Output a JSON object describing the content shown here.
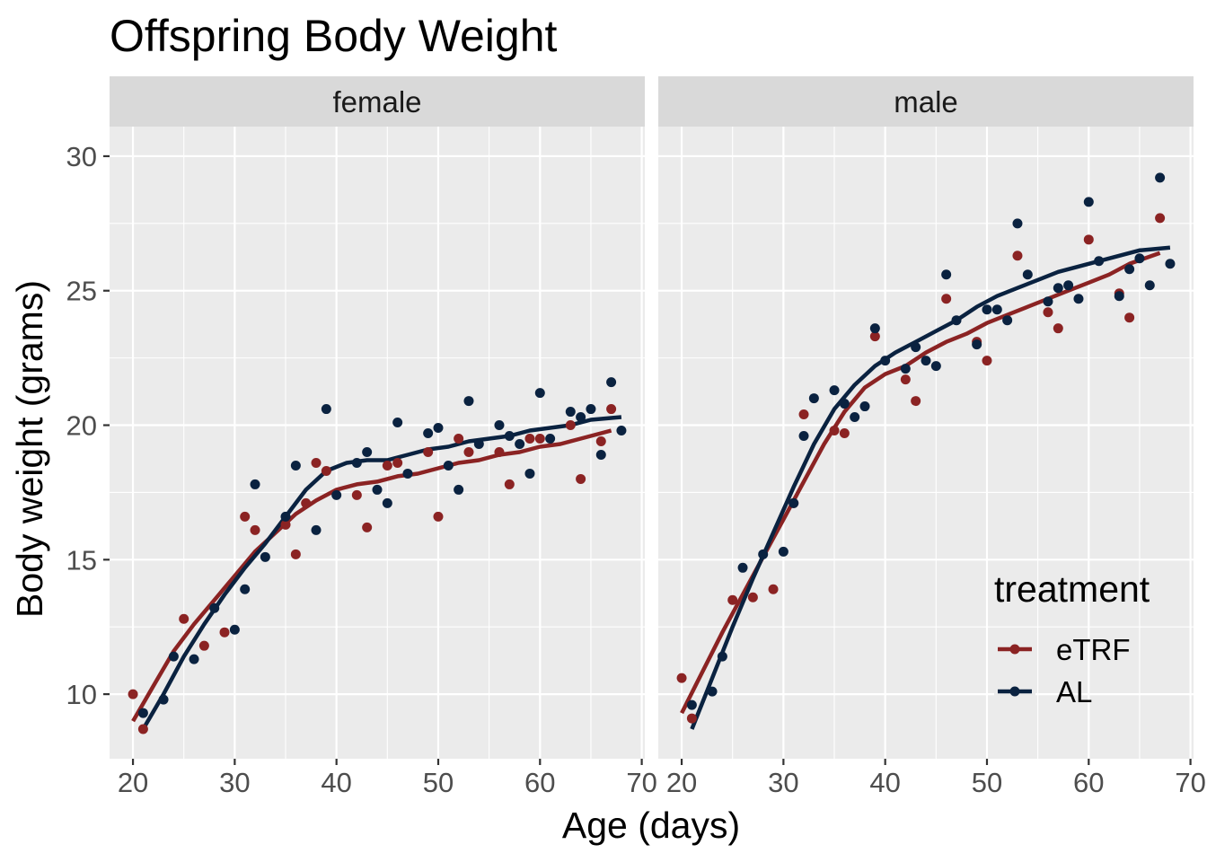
{
  "chart_data": {
    "type": "scatter",
    "title": "Offspring Body Weight",
    "xlabel": "Age (days)",
    "ylabel": "Body weight (grams)",
    "xlim": [
      17.7,
      70.3
    ],
    "ylim": [
      7.6,
      31.1
    ],
    "x_ticks": [
      "20",
      "30",
      "40",
      "50",
      "60",
      "70"
    ],
    "y_ticks": [
      "10",
      "15",
      "20",
      "25",
      "30"
    ],
    "grid": true,
    "legend": {
      "title": "treatment",
      "position": "bottom-right",
      "entries": [
        {
          "label": "eTRF",
          "color": "#8B2323"
        },
        {
          "label": "AL",
          "color": "#0A2240"
        }
      ]
    },
    "facets": [
      {
        "label": "female",
        "series": [
          {
            "name": "eTRF",
            "color": "#8B2323",
            "points": [
              [
                20,
                10.0
              ],
              [
                21,
                8.7
              ],
              [
                25,
                12.8
              ],
              [
                27,
                11.8
              ],
              [
                29,
                12.3
              ],
              [
                31,
                16.6
              ],
              [
                32,
                16.1
              ],
              [
                35,
                16.3
              ],
              [
                36,
                15.2
              ],
              [
                37,
                17.1
              ],
              [
                38,
                18.6
              ],
              [
                39,
                18.3
              ],
              [
                42,
                17.4
              ],
              [
                43,
                16.2
              ],
              [
                45,
                18.5
              ],
              [
                46,
                18.6
              ],
              [
                49,
                19.0
              ],
              [
                50,
                16.6
              ],
              [
                52,
                19.5
              ],
              [
                53,
                19.0
              ],
              [
                56,
                19.0
              ],
              [
                57,
                17.8
              ],
              [
                59,
                19.5
              ],
              [
                60,
                19.5
              ],
              [
                63,
                20.0
              ],
              [
                64,
                18.0
              ],
              [
                66,
                19.4
              ],
              [
                67,
                20.6
              ]
            ],
            "smooth": [
              [
                20,
                9.0
              ],
              [
                22,
                10.3
              ],
              [
                24,
                11.6
              ],
              [
                26,
                12.6
              ],
              [
                28,
                13.5
              ],
              [
                30,
                14.4
              ],
              [
                32,
                15.3
              ],
              [
                34,
                16.0
              ],
              [
                36,
                16.7
              ],
              [
                38,
                17.2
              ],
              [
                40,
                17.6
              ],
              [
                42,
                17.8
              ],
              [
                44,
                17.9
              ],
              [
                46,
                18.1
              ],
              [
                48,
                18.2
              ],
              [
                50,
                18.4
              ],
              [
                52,
                18.6
              ],
              [
                54,
                18.7
              ],
              [
                56,
                18.9
              ],
              [
                58,
                19.0
              ],
              [
                60,
                19.2
              ],
              [
                62,
                19.3
              ],
              [
                64,
                19.5
              ],
              [
                67,
                19.8
              ]
            ]
          },
          {
            "name": "AL",
            "color": "#0A2240",
            "points": [
              [
                21,
                9.3
              ],
              [
                23,
                9.8
              ],
              [
                24,
                11.4
              ],
              [
                26,
                11.3
              ],
              [
                28,
                13.2
              ],
              [
                30,
                12.4
              ],
              [
                31,
                13.9
              ],
              [
                32,
                17.8
              ],
              [
                33,
                15.1
              ],
              [
                35,
                16.6
              ],
              [
                36,
                18.5
              ],
              [
                38,
                16.1
              ],
              [
                39,
                20.6
              ],
              [
                40,
                17.4
              ],
              [
                42,
                18.6
              ],
              [
                43,
                19.0
              ],
              [
                44,
                17.6
              ],
              [
                45,
                17.1
              ],
              [
                46,
                20.1
              ],
              [
                47,
                18.2
              ],
              [
                49,
                19.7
              ],
              [
                50,
                19.9
              ],
              [
                51,
                18.5
              ],
              [
                52,
                17.6
              ],
              [
                53,
                20.9
              ],
              [
                54,
                19.3
              ],
              [
                56,
                20.0
              ],
              [
                57,
                19.6
              ],
              [
                58,
                19.3
              ],
              [
                59,
                18.2
              ],
              [
                60,
                21.2
              ],
              [
                61,
                19.5
              ],
              [
                63,
                20.5
              ],
              [
                64,
                20.3
              ],
              [
                65,
                20.6
              ],
              [
                66,
                18.9
              ],
              [
                67,
                21.6
              ],
              [
                68,
                19.8
              ]
            ],
            "smooth": [
              [
                21,
                8.7
              ],
              [
                23,
                10.0
              ],
              [
                25,
                11.4
              ],
              [
                27,
                12.6
              ],
              [
                29,
                13.7
              ],
              [
                31,
                14.7
              ],
              [
                33,
                15.6
              ],
              [
                35,
                16.6
              ],
              [
                37,
                17.6
              ],
              [
                39,
                18.3
              ],
              [
                41,
                18.6
              ],
              [
                43,
                18.7
              ],
              [
                45,
                18.7
              ],
              [
                47,
                18.9
              ],
              [
                49,
                19.1
              ],
              [
                51,
                19.2
              ],
              [
                53,
                19.4
              ],
              [
                55,
                19.5
              ],
              [
                57,
                19.6
              ],
              [
                59,
                19.8
              ],
              [
                61,
                19.9
              ],
              [
                63,
                20.0
              ],
              [
                65,
                20.2
              ],
              [
                68,
                20.3
              ]
            ]
          }
        ]
      },
      {
        "label": "male",
        "series": [
          {
            "name": "eTRF",
            "color": "#8B2323",
            "points": [
              [
                20,
                10.6
              ],
              [
                21,
                9.1
              ],
              [
                25,
                13.5
              ],
              [
                27,
                13.6
              ],
              [
                29,
                13.9
              ],
              [
                31,
                17.1
              ],
              [
                32,
                20.4
              ],
              [
                35,
                19.8
              ],
              [
                36,
                19.7
              ],
              [
                39,
                23.3
              ],
              [
                42,
                21.7
              ],
              [
                43,
                20.9
              ],
              [
                46,
                24.7
              ],
              [
                49,
                23.1
              ],
              [
                50,
                22.4
              ],
              [
                53,
                26.3
              ],
              [
                56,
                24.2
              ],
              [
                57,
                23.6
              ],
              [
                60,
                26.9
              ],
              [
                63,
                24.9
              ],
              [
                64,
                24.0
              ],
              [
                67,
                27.7
              ]
            ],
            "smooth": [
              [
                20,
                9.3
              ],
              [
                22,
                10.8
              ],
              [
                24,
                12.3
              ],
              [
                26,
                13.7
              ],
              [
                28,
                15.1
              ],
              [
                30,
                16.5
              ],
              [
                32,
                17.9
              ],
              [
                34,
                19.3
              ],
              [
                36,
                20.5
              ],
              [
                38,
                21.4
              ],
              [
                40,
                21.9
              ],
              [
                42,
                22.2
              ],
              [
                44,
                22.7
              ],
              [
                46,
                23.1
              ],
              [
                48,
                23.4
              ],
              [
                50,
                23.8
              ],
              [
                52,
                24.1
              ],
              [
                54,
                24.4
              ],
              [
                56,
                24.7
              ],
              [
                58,
                25.0
              ],
              [
                60,
                25.3
              ],
              [
                62,
                25.6
              ],
              [
                64,
                26.0
              ],
              [
                67,
                26.4
              ]
            ]
          },
          {
            "name": "AL",
            "color": "#0A2240",
            "points": [
              [
                21,
                9.6
              ],
              [
                23,
                10.1
              ],
              [
                24,
                11.4
              ],
              [
                26,
                14.7
              ],
              [
                28,
                15.2
              ],
              [
                30,
                15.3
              ],
              [
                31,
                17.1
              ],
              [
                32,
                19.6
              ],
              [
                33,
                21.0
              ],
              [
                35,
                21.3
              ],
              [
                36,
                20.8
              ],
              [
                37,
                20.3
              ],
              [
                38,
                20.7
              ],
              [
                39,
                23.6
              ],
              [
                40,
                22.4
              ],
              [
                42,
                22.1
              ],
              [
                43,
                22.9
              ],
              [
                44,
                22.4
              ],
              [
                45,
                22.2
              ],
              [
                46,
                25.6
              ],
              [
                47,
                23.9
              ],
              [
                49,
                23.0
              ],
              [
                50,
                24.3
              ],
              [
                51,
                24.3
              ],
              [
                52,
                23.9
              ],
              [
                53,
                27.5
              ],
              [
                54,
                25.6
              ],
              [
                56,
                24.6
              ],
              [
                57,
                25.1
              ],
              [
                58,
                25.2
              ],
              [
                59,
                24.7
              ],
              [
                60,
                28.3
              ],
              [
                61,
                26.1
              ],
              [
                63,
                24.8
              ],
              [
                64,
                25.8
              ],
              [
                65,
                26.2
              ],
              [
                66,
                25.2
              ],
              [
                67,
                29.2
              ],
              [
                68,
                26.0
              ]
            ],
            "smooth": [
              [
                21,
                8.7
              ],
              [
                23,
                10.6
              ],
              [
                25,
                12.5
              ],
              [
                27,
                14.3
              ],
              [
                29,
                16.0
              ],
              [
                31,
                17.7
              ],
              [
                33,
                19.3
              ],
              [
                35,
                20.6
              ],
              [
                37,
                21.5
              ],
              [
                39,
                22.2
              ],
              [
                41,
                22.7
              ],
              [
                43,
                23.1
              ],
              [
                45,
                23.5
              ],
              [
                47,
                23.9
              ],
              [
                49,
                24.4
              ],
              [
                51,
                24.8
              ],
              [
                53,
                25.1
              ],
              [
                55,
                25.4
              ],
              [
                57,
                25.7
              ],
              [
                59,
                25.9
              ],
              [
                61,
                26.1
              ],
              [
                63,
                26.3
              ],
              [
                65,
                26.5
              ],
              [
                68,
                26.6
              ]
            ]
          }
        ]
      }
    ]
  }
}
